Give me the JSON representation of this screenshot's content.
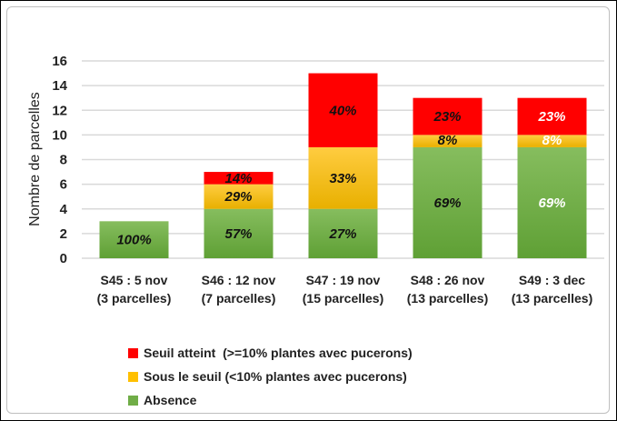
{
  "chart_data": {
    "type": "bar",
    "stacked": true,
    "ylabel": "Nombre de parcelles",
    "ylim": [
      0,
      16
    ],
    "yticks": [
      "0",
      "2",
      "4",
      "6",
      "8",
      "10",
      "12",
      "14",
      "16"
    ],
    "grid": true,
    "legend_position": "bottom-left",
    "categories": [
      [
        "S45 : 5 nov",
        "(3 parcelles)"
      ],
      [
        "S46 : 12 nov",
        "(7 parcelles)"
      ],
      [
        "S47 : 19 nov",
        "(15 parcelles)"
      ],
      [
        "S48 : 26 nov",
        "(13 parcelles)"
      ],
      [
        "S49 : 3 dec",
        "(13 parcelles)"
      ]
    ],
    "series": [
      {
        "name": "Absence",
        "color": "#70ad47",
        "values": [
          3,
          4,
          4,
          9,
          9
        ],
        "labels": [
          "100%",
          "57%",
          "27%",
          "69%",
          "69%"
        ]
      },
      {
        "name": "Sous le seuil (<10% plantes avec pucerons)",
        "color": "#ffc000",
        "values": [
          0,
          2,
          5,
          1,
          1
        ],
        "labels": [
          "",
          "29%",
          "33%",
          "8%",
          "8%"
        ]
      },
      {
        "name": "Seuil atteint  (>=10% plantes avec pucerons)",
        "color": "#ff0000",
        "values": [
          0,
          1,
          6,
          3,
          3
        ],
        "labels": [
          "",
          "14%",
          "40%",
          "23%",
          "23%"
        ]
      }
    ],
    "label_style_last_bar": "white-bold-upright"
  }
}
